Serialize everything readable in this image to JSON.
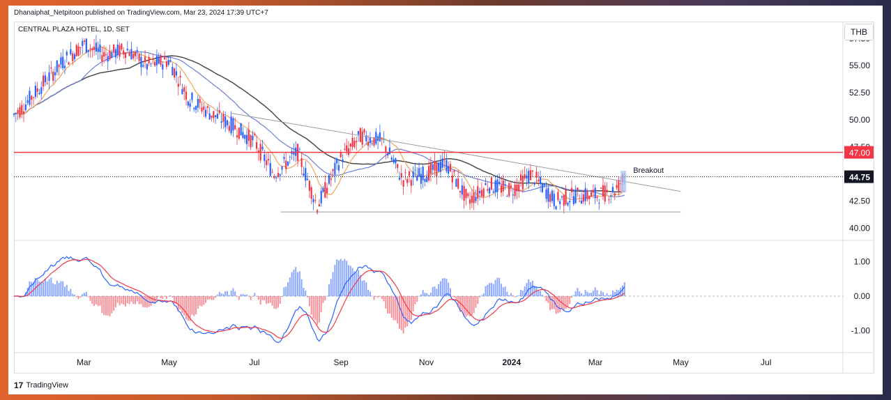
{
  "header": {
    "publisher_line": "Dhanaiphat_Netpitoon published on TradingView.com, Mar 23, 2024 17:39 UTC+7"
  },
  "footer": {
    "brand": "TradingView",
    "logo_glyph": "17"
  },
  "currency_button": {
    "label": "THB"
  },
  "chart_data": [
    {
      "type": "candlestick",
      "title": "CENTRAL PLAZA HOTEL, 1D, SET",
      "currency": "THB",
      "x_tick_labels": [
        "Mar",
        "May",
        "Jul",
        "Sep",
        "Nov",
        "2024",
        "Mar",
        "May",
        "Jul"
      ],
      "y_tick_labels": [
        "57.50",
        "55.00",
        "52.50",
        "50.00",
        "47.50",
        "42.50",
        "40.00"
      ],
      "ylim": [
        39.0,
        59.0
      ],
      "last_price": "44.75",
      "resistance_level": {
        "value": 47.0,
        "label": "47.00",
        "color": "#f23645"
      },
      "annotations": [
        {
          "text": "Breakout"
        }
      ],
      "trendlines": [
        {
          "name": "descending resistance",
          "from": [
            "2023-06-15",
            50.6
          ],
          "to": [
            "2024-05-01",
            43.4
          ]
        },
        {
          "name": "support",
          "from": [
            "2023-07-20",
            41.5
          ],
          "to": [
            "2024-05-01",
            41.5
          ]
        }
      ],
      "price_path_dates": [
        "2023-01-01",
        "2023-01-15",
        "2023-02-01",
        "2023-02-15",
        "2023-03-01",
        "2023-03-15",
        "2023-04-01",
        "2023-04-15",
        "2023-05-01",
        "2023-05-15",
        "2023-06-01",
        "2023-06-15",
        "2023-07-01",
        "2023-07-15",
        "2023-08-01",
        "2023-08-15",
        "2023-09-01",
        "2023-09-15",
        "2023-10-01",
        "2023-10-15",
        "2023-11-01",
        "2023-11-15",
        "2023-12-01",
        "2023-12-15",
        "2024-01-01",
        "2024-01-15",
        "2024-02-01",
        "2024-02-15",
        "2024-03-01",
        "2024-03-15",
        "2024-03-22"
      ],
      "price_path_close": [
        49.5,
        51.0,
        53.5,
        55.5,
        57.0,
        56.0,
        56.5,
        55.0,
        55.5,
        52.0,
        50.5,
        49.5,
        48.0,
        45.0,
        47.0,
        42.0,
        46.5,
        48.5,
        48.0,
        44.5,
        45.0,
        46.0,
        42.5,
        44.0,
        43.5,
        45.0,
        42.5,
        43.0,
        43.0,
        43.5,
        44.75
      ],
      "ma_colors": {
        "short": "#f0a35a",
        "medium": "#6a7fd8",
        "long": "#4a4a4a"
      },
      "macd": {
        "y_tick_labels": [
          "1.00",
          "0.00",
          "-1.00"
        ],
        "ylim": [
          -1.6,
          1.6
        ],
        "colors": {
          "macd": "#2962ff",
          "signal": "#f23645",
          "hist_pos": "#2962ff",
          "hist_neg": "#f23645"
        }
      },
      "grid": false,
      "legend": "none"
    }
  ]
}
